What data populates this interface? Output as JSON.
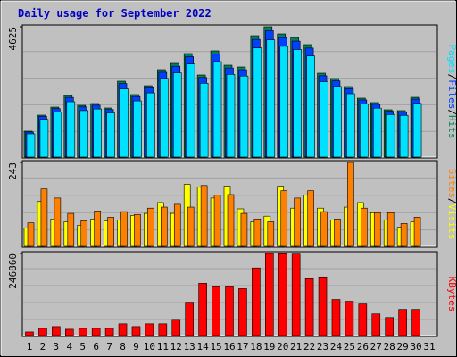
{
  "chart_data": [
    {
      "type": "bar",
      "title": "Daily usage for September 2022",
      "ylim": [
        0,
        4625
      ],
      "yticks": [
        4625
      ],
      "series": [
        {
          "name": "Hits",
          "color": "#00805c",
          "values": [
            944,
            1510,
            1793,
            2202,
            1856,
            1919,
            1762,
            2706,
            2234,
            2548,
            3115,
            3335,
            3681,
            2926,
            3776,
            3272,
            3209,
            4310,
            4625,
            4373,
            4247,
            3996,
            2989,
            2800,
            2517,
            2108,
            1951,
            1699,
            1668,
            2139,
            null
          ]
        },
        {
          "name": "Files",
          "color": "#0040ff",
          "values": [
            916,
            1465,
            1739,
            2136,
            1800,
            1861,
            1709,
            2625,
            2167,
            2472,
            3022,
            3235,
            3571,
            2838,
            3663,
            3174,
            3113,
            4181,
            4486,
            4242,
            4120,
            3876,
            2899,
            2716,
            2441,
            2045,
            1892,
            1648,
            1618,
            2075,
            null
          ]
        },
        {
          "name": "Pages",
          "color": "#00e0ff",
          "values": [
            850,
            1359,
            1614,
            1982,
            1670,
            1727,
            1586,
            2435,
            2011,
            2293,
            2804,
            3002,
            3313,
            2633,
            3398,
            2945,
            2888,
            3879,
            4163,
            3936,
            3822,
            3596,
            2690,
            2520,
            2265,
            1897,
            1756,
            1529,
            1501,
            1925,
            null
          ]
        }
      ]
    },
    {
      "type": "bar",
      "ylim": [
        0,
        243
      ],
      "yticks": [
        243
      ],
      "series": [
        {
          "name": "Visits",
          "color": "#ffff00",
          "values": [
            55,
            131,
            81,
            73,
            63,
            81,
            76,
            78,
            91,
            97,
            128,
            97,
            180,
            172,
            141,
            175,
            110,
            73,
            89,
            175,
            112,
            149,
            112,
            78,
            115,
            128,
            99,
            78,
            57,
            73,
            null
          ]
        },
        {
          "name": "Sites",
          "color": "#ff8000",
          "values": [
            70,
            167,
            141,
            97,
            76,
            104,
            86,
            102,
            94,
            112,
            115,
            123,
            115,
            177,
            149,
            151,
            97,
            81,
            73,
            162,
            141,
            162,
            102,
            81,
            243,
            112,
            99,
            99,
            68,
            86,
            null
          ]
        }
      ]
    },
    {
      "type": "bar",
      "ylim": [
        0,
        246860
      ],
      "yticks": [
        246860
      ],
      "categories": [
        "1",
        "2",
        "3",
        "4",
        "5",
        "6",
        "7",
        "8",
        "9",
        "10",
        "11",
        "12",
        "13",
        "14",
        "15",
        "16",
        "17",
        "18",
        "19",
        "20",
        "21",
        "22",
        "23",
        "24",
        "25",
        "26",
        "27",
        "28",
        "29",
        "30",
        "31"
      ],
      "category_colors": [
        "#000000",
        "#000000",
        "#008040",
        "#008040",
        "#000000",
        "#000000",
        "#000000",
        "#000000",
        "#000000",
        "#008040",
        "#008040",
        "#000000",
        "#000000",
        "#000000",
        "#000000",
        "#000000",
        "#008040",
        "#008040",
        "#000000",
        "#000000",
        "#000000",
        "#000000",
        "#000000",
        "#008040",
        "#008040",
        "#000000",
        "#000000",
        "#000000",
        "#000000",
        "#000000",
        "#008040"
      ],
      "series": [
        {
          "name": "KBytes",
          "color": "#ff0000",
          "values": [
            13416,
            24150,
            29516,
            21466,
            24150,
            24150,
            24150,
            37565,
            29516,
            37565,
            37565,
            50980,
            101960,
            158310,
            147577,
            147577,
            142211,
            203925,
            246860,
            246000,
            245000,
            171725,
            177091,
            110010,
            104644,
            96597,
            67079,
            56346,
            80496,
            80496,
            null
          ]
        }
      ]
    }
  ]
}
